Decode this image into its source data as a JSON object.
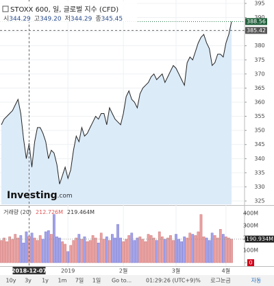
{
  "chart_data": [
    {
      "type": "area",
      "title": "STOXX 600, 일, 글로벌 지수 (CFD)",
      "ohlc": [
        {
          "name": "시",
          "value": 344.29
        },
        {
          "name": "고",
          "value": 349.2,
          "label": "349.20"
        },
        {
          "name": "저",
          "value": 344.29
        },
        {
          "name": "종",
          "value": 345.45
        }
      ],
      "categories": [
        null,
        null,
        null,
        null,
        null,
        null,
        null,
        null,
        null,
        null,
        "2018-12-07",
        null,
        null,
        null,
        null,
        null,
        null,
        null,
        null,
        null,
        null,
        null,
        null,
        null,
        "2019",
        null,
        null,
        null,
        null,
        null,
        null,
        null,
        null,
        null,
        null,
        null,
        null,
        null,
        null,
        null,
        null,
        null,
        null,
        null,
        "2월",
        null,
        null,
        null,
        null,
        null,
        null,
        null,
        null,
        null,
        null,
        null,
        null,
        null,
        null,
        null,
        null,
        null,
        null,
        "3월",
        null,
        null,
        null,
        null,
        null,
        null,
        null,
        null,
        null,
        null,
        null,
        null,
        null,
        null,
        null,
        null,
        null,
        "4월",
        null,
        null
      ],
      "values": [
        352,
        354,
        355,
        356,
        357,
        359,
        361,
        356,
        347,
        340,
        345.45,
        337,
        346,
        351,
        351,
        349,
        346,
        340,
        343,
        342,
        338,
        331,
        334,
        337,
        333,
        336,
        343,
        348,
        346,
        351,
        348,
        349,
        351,
        353,
        355,
        354,
        356,
        356,
        352,
        358,
        356,
        354,
        353,
        352,
        356,
        362,
        364,
        361,
        360,
        358,
        363,
        365,
        366,
        367,
        369,
        370,
        368,
        369,
        370,
        367,
        369,
        371,
        373,
        372,
        370,
        368,
        366,
        374,
        376,
        375,
        378,
        381,
        383,
        384,
        381,
        379,
        373,
        374,
        377,
        377,
        376,
        381,
        384,
        388.56
      ],
      "crosshair_value": 385.42,
      "color": "#222222",
      "fill": "#dcebf8",
      "ylim": [
        323.8,
        396.2
      ],
      "yticks": [
        325,
        330,
        335,
        340,
        345,
        350,
        355,
        360,
        365,
        370,
        375,
        380,
        385,
        390,
        395
      ],
      "grid": true,
      "logo": [
        "Investing",
        ".com"
      ]
    },
    {
      "type": "bar",
      "title": "거래량 (20)",
      "readouts": [
        {
          "value": 212.726,
          "label": "212.726M",
          "color": "#e05555"
        },
        {
          "value": 219.464,
          "label": "219.464M",
          "color": "#333333"
        }
      ],
      "values": [
        180,
        200,
        170,
        210,
        190,
        230,
        200,
        220,
        160,
        250,
        212.726,
        240,
        200,
        180,
        220,
        190,
        250,
        260,
        230,
        390,
        210,
        200,
        170,
        150,
        90,
        140,
        180,
        200,
        230,
        190,
        210,
        170,
        180,
        220,
        200,
        160,
        240,
        190,
        210,
        180,
        230,
        200,
        310,
        200,
        170,
        190,
        220,
        240,
        180,
        200,
        210,
        190,
        170,
        230,
        220,
        200,
        180,
        250,
        210,
        190,
        200,
        220,
        180,
        230,
        190,
        170,
        210,
        200,
        240,
        230,
        220,
        250,
        390,
        210,
        200,
        180,
        240,
        220,
        200,
        270,
        230,
        210,
        200,
        190.934
      ],
      "current": {
        "value": 190.934,
        "label": "190.934M"
      },
      "up_color": "#eba1a1",
      "down_color": "#a3a3ea",
      "ylim": [
        0,
        455
      ],
      "yticks": [
        0,
        {
          "value": 100,
          "label": "100M"
        },
        {
          "value": 200,
          "label": "200M"
        },
        {
          "value": 300,
          "label": "300M"
        },
        {
          "value": 400,
          "label": "400M"
        }
      ]
    }
  ],
  "toolbar": {
    "ranges": [
      "10y",
      "3y",
      "1y",
      "1m",
      "7일",
      "1일"
    ],
    "goto": "Go to...",
    "time": "01:29:26 (UTC+9)",
    "options": [
      "%",
      "로그눈금",
      "자동"
    ]
  }
}
